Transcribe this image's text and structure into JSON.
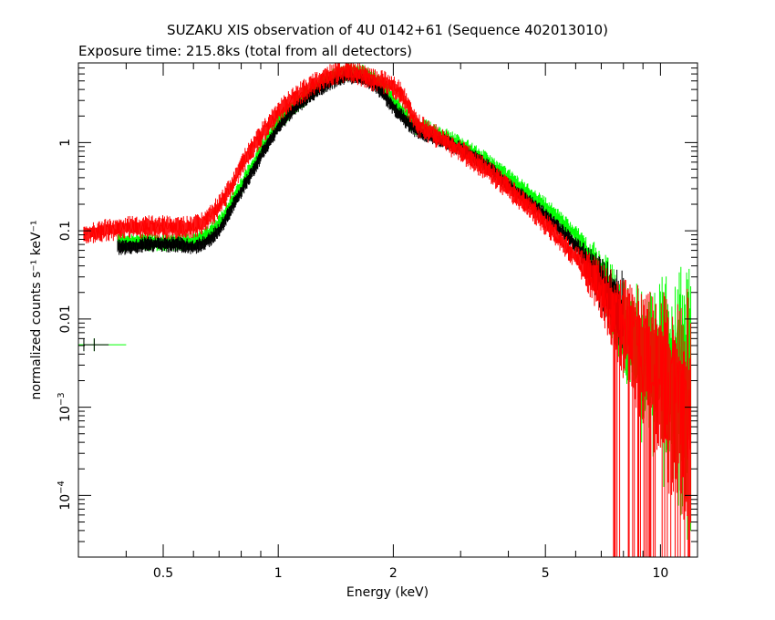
{
  "chart_data": {
    "type": "line",
    "title": "SUZAKU XIS observation of 4U 0142+61 (Sequence 402013010)",
    "subtitle": "Exposure time: 215.8ks (total from all detectors)",
    "xlabel": "Energy (keV)",
    "ylabel": "normalized counts s⁻¹ keV⁻¹",
    "xscale": "log",
    "yscale": "log",
    "xlim": [
      0.3,
      12.5
    ],
    "ylim": [
      2e-05,
      8
    ],
    "grid": false,
    "legend": "none",
    "x_tick_labels": [
      {
        "value": 0.5,
        "label": "0.5"
      },
      {
        "value": 1,
        "label": "1"
      },
      {
        "value": 2,
        "label": "2"
      },
      {
        "value": 5,
        "label": "5"
      },
      {
        "value": 10,
        "label": "10"
      }
    ],
    "y_tick_labels": [
      {
        "value": 1,
        "base": "1",
        "exp": ""
      },
      {
        "value": 0.1,
        "base": "0.1",
        "exp": ""
      },
      {
        "value": 0.01,
        "base": "0.01",
        "exp": ""
      },
      {
        "value": 0.001,
        "base": "10",
        "exp": "−3"
      },
      {
        "value": 0.0001,
        "base": "10",
        "exp": "−4"
      }
    ],
    "series": [
      {
        "color": "#ff0000",
        "x": [
          0.31,
          0.35,
          0.4,
          0.45,
          0.5,
          0.55,
          0.6,
          0.65,
          0.7,
          0.75,
          0.8,
          0.9,
          1.0,
          1.1,
          1.2,
          1.3,
          1.4,
          1.5,
          1.6,
          1.7,
          1.8,
          1.9,
          2.0,
          2.1,
          2.2,
          2.3,
          2.5,
          3.0,
          3.5,
          4.0,
          4.5,
          5.0,
          6.0,
          7.0,
          8.0,
          9.0,
          10.0,
          11.0,
          12.0
        ],
        "y": [
          0.09,
          0.1,
          0.11,
          0.11,
          0.11,
          0.11,
          0.11,
          0.13,
          0.19,
          0.3,
          0.55,
          1.2,
          2.2,
          3.2,
          4.2,
          5.2,
          6.0,
          6.5,
          6.2,
          5.5,
          5.0,
          4.8,
          4.3,
          3.6,
          2.4,
          1.6,
          1.3,
          0.8,
          0.5,
          0.3,
          0.19,
          0.12,
          0.05,
          0.022,
          0.008,
          0.004,
          0.002,
          0.001,
          0.0008
        ],
        "noise": 0.15
      },
      {
        "color": "#00ff00",
        "x": [
          0.38,
          0.4,
          0.45,
          0.5,
          0.55,
          0.6,
          0.65,
          0.7,
          0.75,
          0.8,
          0.9,
          1.0,
          1.1,
          1.2,
          1.3,
          1.4,
          1.5,
          1.6,
          1.7,
          1.8,
          1.9,
          2.0,
          2.1,
          2.2,
          2.3,
          2.5,
          3.0,
          3.5,
          4.0,
          4.5,
          5.0,
          6.0,
          7.0,
          8.0,
          9.0,
          10.0,
          11.0,
          12.0
        ],
        "y": [
          0.075,
          0.075,
          0.075,
          0.075,
          0.075,
          0.075,
          0.09,
          0.12,
          0.2,
          0.32,
          0.8,
          1.7,
          2.6,
          3.6,
          4.6,
          5.6,
          6.3,
          6.2,
          5.8,
          5.0,
          4.2,
          2.9,
          2.3,
          1.8,
          1.5,
          1.4,
          0.95,
          0.62,
          0.4,
          0.27,
          0.19,
          0.09,
          0.03,
          0.008,
          0.004,
          0.003,
          0.002,
          0.002
        ],
        "noise": 0.12
      },
      {
        "color": "#000000",
        "x": [
          0.38,
          0.4,
          0.45,
          0.5,
          0.55,
          0.6,
          0.65,
          0.7,
          0.75,
          0.8,
          0.9,
          1.0,
          1.1,
          1.2,
          1.3,
          1.4,
          1.5,
          1.6,
          1.7,
          1.8,
          1.9,
          2.0,
          2.1,
          2.2,
          2.3,
          2.5,
          3.0,
          3.5,
          4.0,
          4.5,
          5.0,
          6.0,
          7.0,
          8.0
        ],
        "y": [
          0.065,
          0.065,
          0.07,
          0.07,
          0.07,
          0.065,
          0.075,
          0.1,
          0.17,
          0.28,
          0.7,
          1.5,
          2.4,
          3.3,
          4.2,
          5.0,
          5.6,
          5.5,
          5.1,
          4.4,
          3.3,
          2.5,
          2.0,
          1.6,
          1.35,
          1.2,
          0.85,
          0.55,
          0.33,
          0.22,
          0.15,
          0.07,
          0.025,
          0.01
        ],
        "noise": 0.1
      }
    ],
    "extra_points": [
      {
        "x": 0.325,
        "y": 0.0051,
        "xerr_lo": 0.3,
        "xerr_hi": 0.4,
        "color": "#00ff00"
      },
      {
        "x": 0.325,
        "y": 0.0051,
        "xerr_lo": 0.31,
        "xerr_hi": 0.36,
        "color": "#000000"
      }
    ]
  }
}
